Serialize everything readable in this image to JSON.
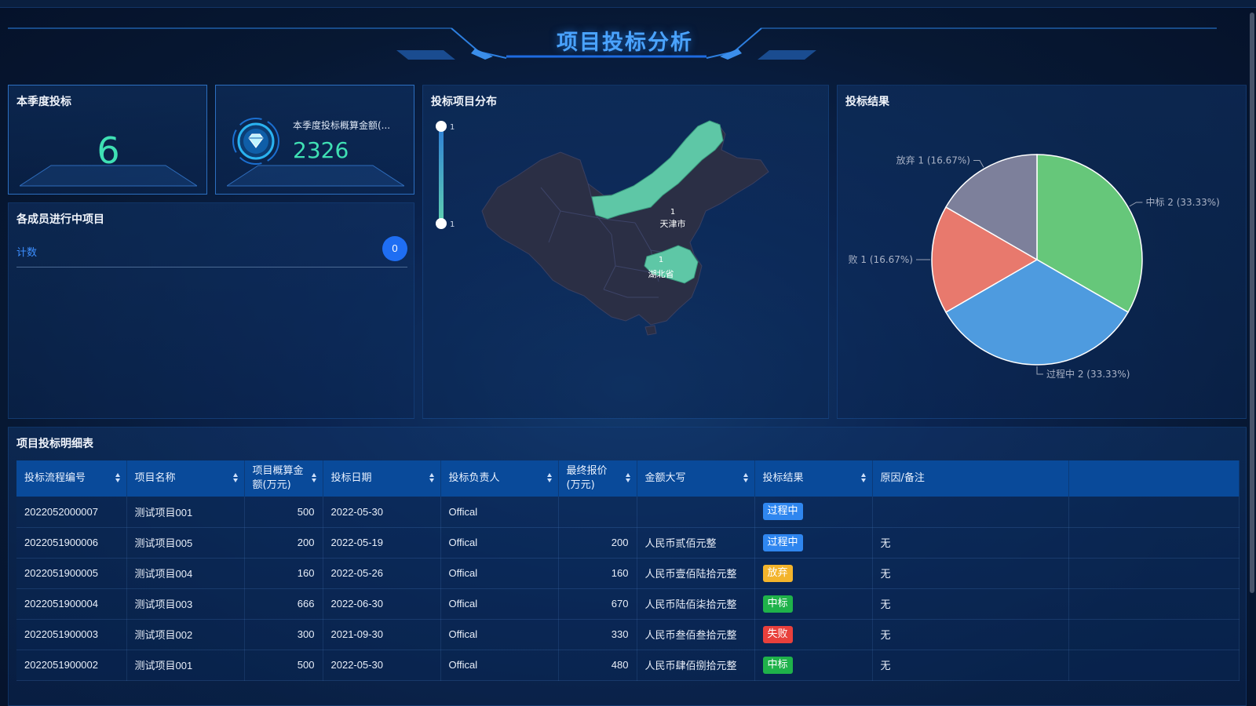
{
  "header": {
    "title": "项目投标分析"
  },
  "kpi": {
    "season_bids_title": "本季度投标",
    "season_bids_value": "6",
    "season_budget_label": "本季度投标概算金额(...",
    "season_budget_value": "2326"
  },
  "members": {
    "title": "各成员进行中项目",
    "rows": [
      {
        "label": "计数",
        "count": "0"
      }
    ]
  },
  "map": {
    "title": "投标项目分布",
    "visual_map": {
      "max_label": "1",
      "min_label": "1"
    },
    "regions": [
      {
        "name": "天津市",
        "value": "1"
      },
      {
        "name": "湖北省",
        "value": "1"
      }
    ],
    "highlight_color": "#5ec7a6",
    "base_color": "#2b2f45"
  },
  "pie": {
    "title": "投标结果",
    "chart_data": {
      "type": "pie",
      "slices": [
        {
          "label": "中标",
          "value": 2,
          "percent": "33.33%",
          "color": "#66c77a"
        },
        {
          "label": "过程中",
          "value": 2,
          "percent": "33.33%",
          "color": "#4e9bdf"
        },
        {
          "label": "败",
          "value": 1,
          "percent": "16.67%",
          "color": "#e8796d"
        },
        {
          "label": "放弃",
          "value": 1,
          "percent": "16.67%",
          "color": "#7d809b"
        }
      ],
      "slice_labels": [
        "中标 2 (33.33%)",
        "过程中 2 (33.33%)",
        "败 1 (16.67%)",
        "放弃 1 (16.67%)"
      ]
    }
  },
  "table": {
    "title": "项目投标明细表",
    "columns": [
      "投标流程编号",
      "项目名称",
      "项目概算金额(万元)",
      "投标日期",
      "投标负责人",
      "最终报价(万元)",
      "金额大写",
      "投标结果",
      "原因/备注"
    ],
    "rows": [
      {
        "id": "2022052000007",
        "name": "测试项目001",
        "budget": "500",
        "date": "2022-05-30",
        "owner": "Offical",
        "price": "",
        "amount_text": "",
        "result": "过程中",
        "result_color": "blue",
        "note": ""
      },
      {
        "id": "2022051900006",
        "name": "测试项目005",
        "budget": "200",
        "date": "2022-05-19",
        "owner": "Offical",
        "price": "200",
        "amount_text": "人民币贰佰元整",
        "result": "过程中",
        "result_color": "blue",
        "note": "无"
      },
      {
        "id": "2022051900005",
        "name": "测试项目004",
        "budget": "160",
        "date": "2022-05-26",
        "owner": "Offical",
        "price": "160",
        "amount_text": "人民币壹佰陆拾元整",
        "result": "放弃",
        "result_color": "yellow",
        "note": "无"
      },
      {
        "id": "2022051900004",
        "name": "测试项目003",
        "budget": "666",
        "date": "2022-06-30",
        "owner": "Offical",
        "price": "670",
        "amount_text": "人民币陆佰柒拾元整",
        "result": "中标",
        "result_color": "green",
        "note": "无"
      },
      {
        "id": "2022051900003",
        "name": "测试项目002",
        "budget": "300",
        "date": "2021-09-30",
        "owner": "Offical",
        "price": "330",
        "amount_text": "人民币叁佰叁拾元整",
        "result": "失败",
        "result_color": "red",
        "note": "无"
      },
      {
        "id": "2022051900002",
        "name": "测试项目001",
        "budget": "500",
        "date": "2022-05-30",
        "owner": "Offical",
        "price": "480",
        "amount_text": "人民币肆佰捌拾元整",
        "result": "中标",
        "result_color": "green",
        "note": "无"
      }
    ]
  }
}
